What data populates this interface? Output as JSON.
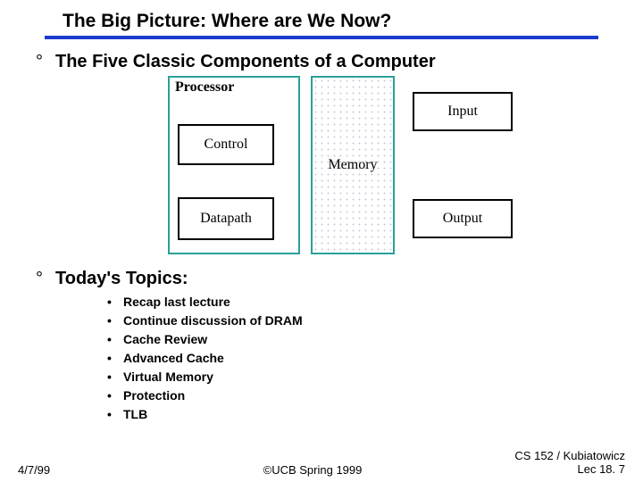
{
  "title": "The Big Picture: Where are We Now?",
  "title_fontsize": 21,
  "underline_color": "#1a3ccc",
  "heading": "The Five Classic Components of a Computer",
  "diagram": {
    "processor_label": "Processor",
    "control_label": "Control",
    "datapath_label": "Datapath",
    "memory_label": "Memory",
    "input_label": "Input",
    "output_label": "Output",
    "outer_border_color": "#2aa198",
    "inner_border_color": "#000000"
  },
  "topics_heading": "Today's Topics:",
  "topics": [
    "Recap last lecture",
    "Continue discussion of DRAM",
    "Cache Review",
    "Advanced Cache",
    "Virtual Memory",
    "Protection",
    "TLB"
  ],
  "footer": {
    "date": "4/7/99",
    "center": "©UCB Spring 1999",
    "right_line1": "CS 152 / Kubiatowicz",
    "right_line2": "Lec 18. 7"
  }
}
